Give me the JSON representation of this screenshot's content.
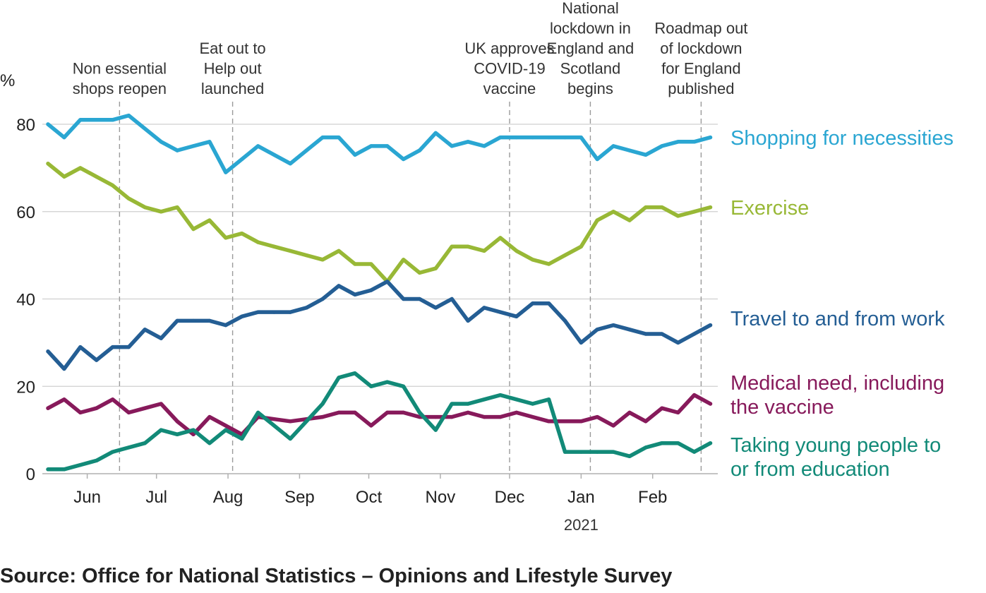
{
  "chart_data": {
    "type": "line",
    "ylabel": "%",
    "ylim": [
      0,
      80
    ],
    "yticks": [
      0,
      20,
      40,
      60,
      80
    ],
    "grid": "horizontal",
    "x_range": [
      "2020-05-15",
      "2021-02-28"
    ],
    "x": [
      "2020-05-15",
      "2020-05-22",
      "2020-05-29",
      "2020-06-05",
      "2020-06-12",
      "2020-06-19",
      "2020-06-26",
      "2020-07-03",
      "2020-07-10",
      "2020-07-17",
      "2020-07-24",
      "2020-07-31",
      "2020-08-07",
      "2020-08-14",
      "2020-08-21",
      "2020-08-28",
      "2020-09-04",
      "2020-09-11",
      "2020-09-18",
      "2020-09-25",
      "2020-10-02",
      "2020-10-09",
      "2020-10-16",
      "2020-10-23",
      "2020-10-30",
      "2020-11-06",
      "2020-11-13",
      "2020-11-20",
      "2020-11-27",
      "2020-12-04",
      "2020-12-11",
      "2020-12-18",
      "2020-12-25",
      "2021-01-01",
      "2021-01-08",
      "2021-01-15",
      "2021-01-22",
      "2021-01-29",
      "2021-02-05",
      "2021-02-12",
      "2021-02-19",
      "2021-02-26"
    ],
    "x_tick_labels": [
      {
        "date": "2020-06-01",
        "label": "Jun"
      },
      {
        "date": "2020-07-01",
        "label": "Jul"
      },
      {
        "date": "2020-08-01",
        "label": "Aug"
      },
      {
        "date": "2020-09-01",
        "label": "Sep"
      },
      {
        "date": "2020-10-01",
        "label": "Oct"
      },
      {
        "date": "2020-11-01",
        "label": "Nov"
      },
      {
        "date": "2020-12-01",
        "label": "Dec"
      },
      {
        "date": "2021-01-01",
        "label": "Jan"
      },
      {
        "date": "2021-02-01",
        "label": "Feb"
      }
    ],
    "year_label": {
      "date": "2021-01-01",
      "label": "2021"
    },
    "series": [
      {
        "name": "Shopping for necessities",
        "color": "#2aa6d2",
        "values": [
          80,
          77,
          81,
          81,
          81,
          82,
          79,
          76,
          74,
          75,
          76,
          69,
          72,
          75,
          73,
          71,
          74,
          77,
          77,
          73,
          75,
          75,
          72,
          74,
          78,
          75,
          76,
          75,
          77,
          77,
          77,
          77,
          77,
          77,
          72,
          75,
          74,
          73,
          75,
          76,
          76,
          77
        ]
      },
      {
        "name": "Exercise",
        "color": "#98b836",
        "values": [
          71,
          68,
          70,
          68,
          66,
          63,
          61,
          60,
          61,
          56,
          58,
          54,
          55,
          53,
          52,
          51,
          50,
          49,
          51,
          48,
          48,
          44,
          49,
          46,
          47,
          52,
          52,
          51,
          54,
          51,
          49,
          48,
          50,
          52,
          58,
          60,
          58,
          61,
          61,
          59,
          60,
          61
        ]
      },
      {
        "name": "Travel to and from work",
        "color": "#245e94",
        "values": [
          28,
          24,
          29,
          26,
          29,
          29,
          33,
          31,
          35,
          35,
          35,
          34,
          36,
          37,
          37,
          37,
          38,
          40,
          43,
          41,
          42,
          44,
          40,
          40,
          38,
          40,
          35,
          38,
          37,
          36,
          39,
          39,
          35,
          30,
          33,
          34,
          33,
          32,
          32,
          30,
          32,
          34
        ]
      },
      {
        "name": "Medical need, including the vaccine",
        "color": "#871a5b",
        "label_lines": [
          "Medical need, including",
          "the vaccine"
        ],
        "values": [
          15,
          17,
          14,
          15,
          17,
          14,
          15,
          16,
          12,
          9,
          13,
          11,
          9,
          13,
          12.5,
          12,
          12.5,
          13,
          14,
          14,
          11,
          14,
          14,
          13,
          13,
          13,
          14,
          13,
          13,
          14,
          13,
          12,
          12,
          12,
          13,
          11,
          14,
          12,
          15,
          14,
          18,
          16
        ]
      },
      {
        "name": "Taking young people to or from education",
        "color": "#128a78",
        "label_lines": [
          "Taking young people to",
          "or from education"
        ],
        "values": [
          1,
          1,
          2,
          3,
          5,
          6,
          7,
          10,
          9,
          10,
          7,
          10,
          8,
          14,
          11,
          8,
          12,
          16,
          22,
          23,
          20,
          21,
          20,
          14,
          10,
          16,
          16,
          17,
          18,
          17,
          16,
          17,
          5,
          5,
          5,
          5,
          4,
          6,
          7,
          7,
          5,
          7
        ]
      }
    ],
    "annotations": [
      {
        "date": "2020-06-15",
        "lines": [
          "Non essential",
          "shops reopen"
        ]
      },
      {
        "date": "2020-08-03",
        "lines": [
          "Eat out to",
          "Help out",
          "launched"
        ]
      },
      {
        "date": "2020-12-01",
        "lines": [
          "UK approves",
          "COVID-19",
          "vaccine"
        ]
      },
      {
        "date": "2021-01-05",
        "lines": [
          "National",
          "lockdown in",
          "England and",
          "Scotland",
          "begins"
        ]
      },
      {
        "date": "2021-02-22",
        "lines": [
          "Roadmap out",
          "of lockdown",
          "for England",
          "published"
        ]
      }
    ]
  },
  "source": "Source: Office for National Statistics – Opinions and Lifestyle Survey"
}
